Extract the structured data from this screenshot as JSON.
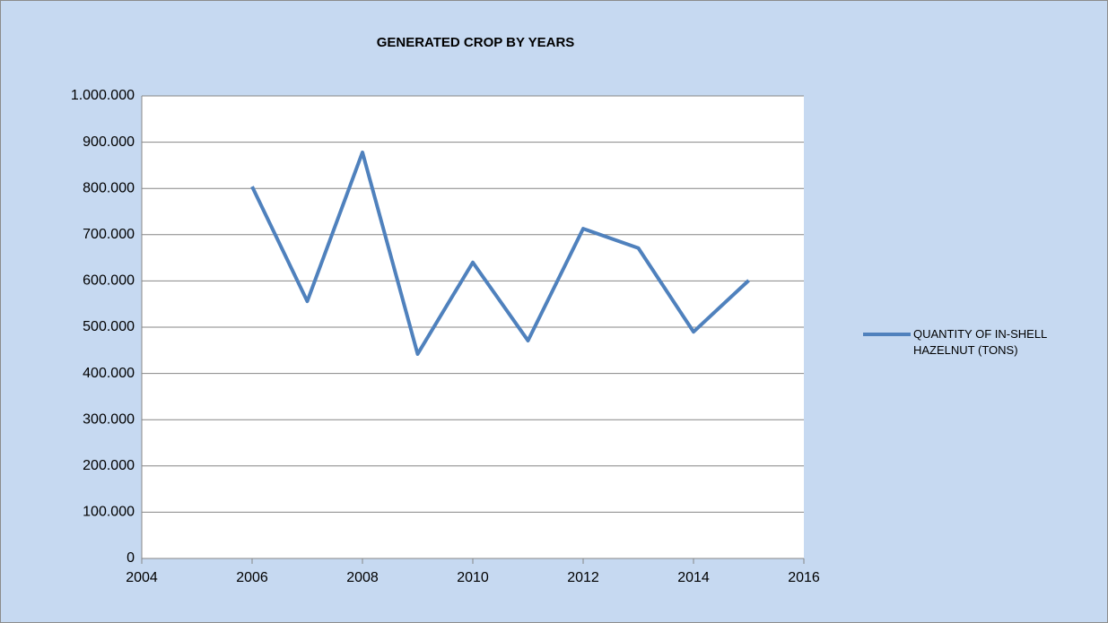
{
  "chart_data": {
    "type": "line",
    "title": "GENERATED CROP BY YEARS",
    "x": [
      2006,
      2007,
      2008,
      2009,
      2010,
      2011,
      2012,
      2013,
      2014,
      2015
    ],
    "series": [
      {
        "name": "QUANTITY OF IN-SHELL HAZELNUT (TONS)",
        "color": "#4f81bd",
        "values": [
          804000,
          556000,
          878000,
          442000,
          640000,
          471000,
          713000,
          671000,
          490000,
          601000
        ]
      }
    ],
    "xlim": [
      2004,
      2016
    ],
    "xticks": [
      2004,
      2006,
      2008,
      2010,
      2012,
      2014,
      2016
    ],
    "ylim": [
      0,
      1000000
    ],
    "yticks": [
      0,
      {
        "value": 100000,
        "label": "100.000"
      },
      {
        "value": 200000,
        "label": "200.000"
      },
      {
        "value": 300000,
        "label": "300.000"
      },
      {
        "value": 400000,
        "label": "400.000"
      },
      {
        "value": 500000,
        "label": "500.000"
      },
      {
        "value": 600000,
        "label": "600.000"
      },
      {
        "value": 700000,
        "label": "700.000"
      },
      {
        "value": 800000,
        "label": "800.000"
      },
      {
        "value": 900000,
        "label": "900.000"
      },
      {
        "value": 1000000,
        "label": "1.000.000"
      }
    ],
    "grid": true,
    "legend": "right"
  }
}
